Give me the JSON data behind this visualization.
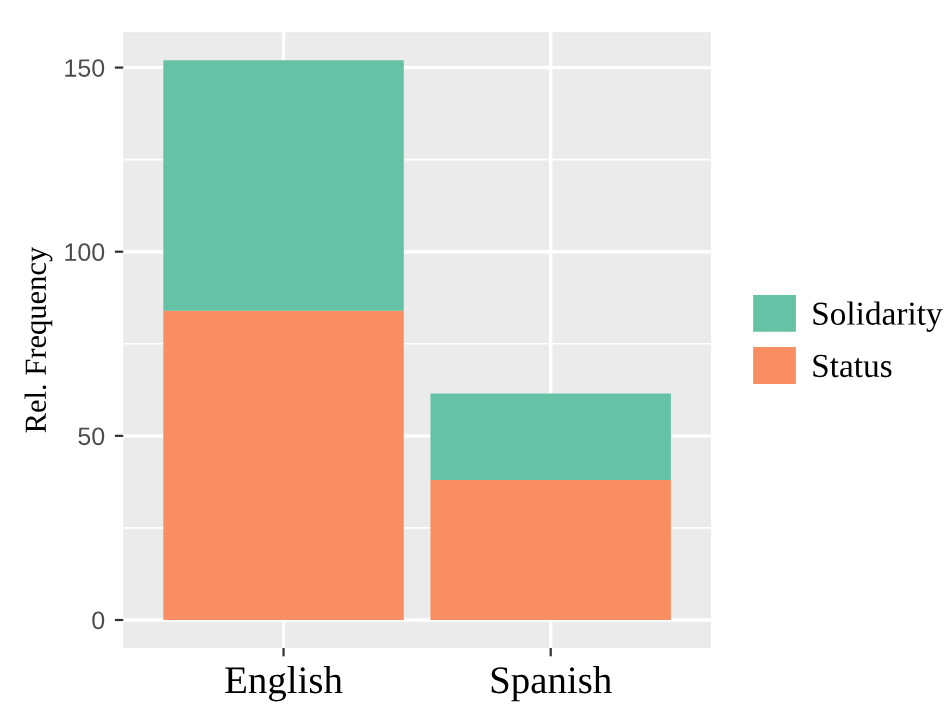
{
  "chart_data": {
    "type": "bar",
    "stacked": true,
    "ylabel": "Rel. Frequency",
    "categories": [
      "English",
      "Spanish"
    ],
    "series": [
      {
        "name": "Status",
        "color": "#f98e63",
        "values": [
          84,
          38
        ]
      },
      {
        "name": "Solidarity",
        "color": "#66c2a5",
        "values": [
          68,
          23.5
        ]
      }
    ],
    "ylim": [
      -7.6,
      159.6
    ],
    "yticks": [
      0,
      50,
      100,
      150
    ],
    "grid": true,
    "legend": "right"
  }
}
